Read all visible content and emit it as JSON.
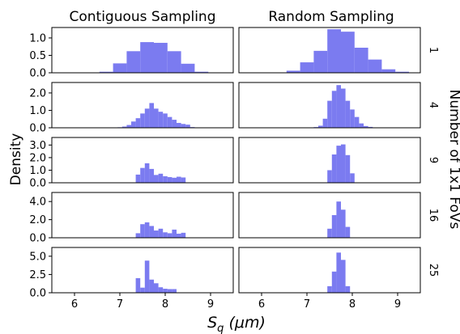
{
  "chart_data": {
    "type": "bar",
    "col_titles": [
      "Contiguous Sampling",
      "Random Sampling"
    ],
    "xlabel": "S_q (μm)",
    "xlabel_main": "S",
    "xlabel_sub": "q",
    "xlabel_unit": " (μm)",
    "ylabel": "Density",
    "right_label": "Number of 1x1 FoVs",
    "xlim": [
      5.5,
      9.5
    ],
    "xticks": [
      "6",
      "7",
      "8",
      "9"
    ],
    "bar_color": "#7b7bf0",
    "rows": [
      {
        "label": "1",
        "ylim": [
          0,
          1.3
        ],
        "yticks": [
          "0.0",
          "0.5",
          "1.0"
        ],
        "contiguous": {
          "edges": [
            6.55,
            6.85,
            7.15,
            7.45,
            7.75,
            8.05,
            8.35,
            8.65,
            8.95
          ],
          "heights": [
            0.03,
            0.27,
            0.62,
            0.88,
            0.86,
            0.62,
            0.26,
            0.03
          ]
        },
        "random": {
          "edges": [
            6.55,
            6.85,
            7.15,
            7.45,
            7.75,
            8.05,
            8.35,
            8.65,
            8.95,
            9.25
          ],
          "heights": [
            0.06,
            0.3,
            0.63,
            1.25,
            1.18,
            0.72,
            0.38,
            0.1,
            0.03
          ]
        }
      },
      {
        "label": "4",
        "ylim": [
          0,
          2.6
        ],
        "yticks": [
          "0.0",
          "1.0",
          "2.0"
        ],
        "contiguous": {
          "edges": [
            6.95,
            7.05,
            7.15,
            7.25,
            7.35,
            7.45,
            7.55,
            7.65,
            7.75,
            7.85,
            7.95,
            8.05,
            8.15,
            8.25,
            8.35,
            8.45,
            8.55,
            8.65
          ],
          "heights": [
            0.03,
            0.07,
            0.16,
            0.36,
            0.55,
            0.82,
            1.1,
            1.42,
            1.1,
            0.92,
            0.82,
            0.62,
            0.46,
            0.28,
            0.22,
            0.18,
            0.04
          ]
        },
        "random": {
          "edges": [
            7.05,
            7.15,
            7.25,
            7.35,
            7.45,
            7.55,
            7.65,
            7.75,
            7.85,
            7.95,
            8.05,
            8.15,
            8.25,
            8.35,
            8.45,
            8.55
          ],
          "heights": [
            0.02,
            0.04,
            0.12,
            0.52,
            1.55,
            2.12,
            2.45,
            2.25,
            1.55,
            1.05,
            0.62,
            0.25,
            0.1,
            0.05,
            0.02
          ]
        }
      },
      {
        "label": "9",
        "ylim": [
          0,
          3.6
        ],
        "yticks": [
          "0.0",
          "1.0",
          "2.0",
          "3.0"
        ],
        "contiguous": {
          "edges": [
            7.35,
            7.45,
            7.55,
            7.65,
            7.75,
            7.85,
            7.95,
            8.05,
            8.15,
            8.25,
            8.35,
            8.45
          ],
          "heights": [
            0.65,
            1.18,
            1.55,
            1.1,
            0.62,
            0.72,
            0.52,
            0.45,
            0.4,
            0.48,
            0.42
          ]
        },
        "random": {
          "edges": [
            7.45,
            7.55,
            7.65,
            7.75,
            7.85,
            7.95,
            8.05
          ],
          "heights": [
            1.0,
            2.25,
            2.95,
            3.05,
            2.2,
            0.75
          ]
        }
      },
      {
        "label": "16",
        "ylim": [
          0,
          5.0
        ],
        "yticks": [
          "0.0",
          "2.0",
          "4.0"
        ],
        "contiguous": {
          "edges": [
            7.35,
            7.45,
            7.55,
            7.65,
            7.75,
            7.85,
            7.95,
            8.05,
            8.15,
            8.25,
            8.35,
            8.45
          ],
          "heights": [
            0.5,
            1.5,
            1.7,
            1.3,
            0.8,
            1.0,
            0.6,
            0.5,
            0.9,
            0.45,
            0.55
          ]
        },
        "random": {
          "edges": [
            7.45,
            7.55,
            7.65,
            7.75,
            7.85,
            7.95
          ],
          "heights": [
            1.0,
            2.5,
            4.0,
            3.1,
            1.2
          ]
        }
      },
      {
        "label": "25",
        "ylim": [
          0,
          6.2
        ],
        "yticks": [
          "0.0",
          "2.5",
          "5.0"
        ],
        "contiguous": {
          "edges": [
            7.35,
            7.45,
            7.55,
            7.65,
            7.75,
            7.85,
            7.95,
            8.05,
            8.15,
            8.25
          ],
          "heights": [
            2.0,
            0.7,
            4.4,
            1.8,
            1.3,
            0.75,
            0.55,
            0.5,
            0.5
          ]
        },
        "random": {
          "edges": [
            7.45,
            7.55,
            7.65,
            7.75,
            7.85,
            7.95
          ],
          "heights": [
            0.9,
            2.9,
            5.5,
            4.5,
            0.9
          ]
        }
      }
    ]
  }
}
